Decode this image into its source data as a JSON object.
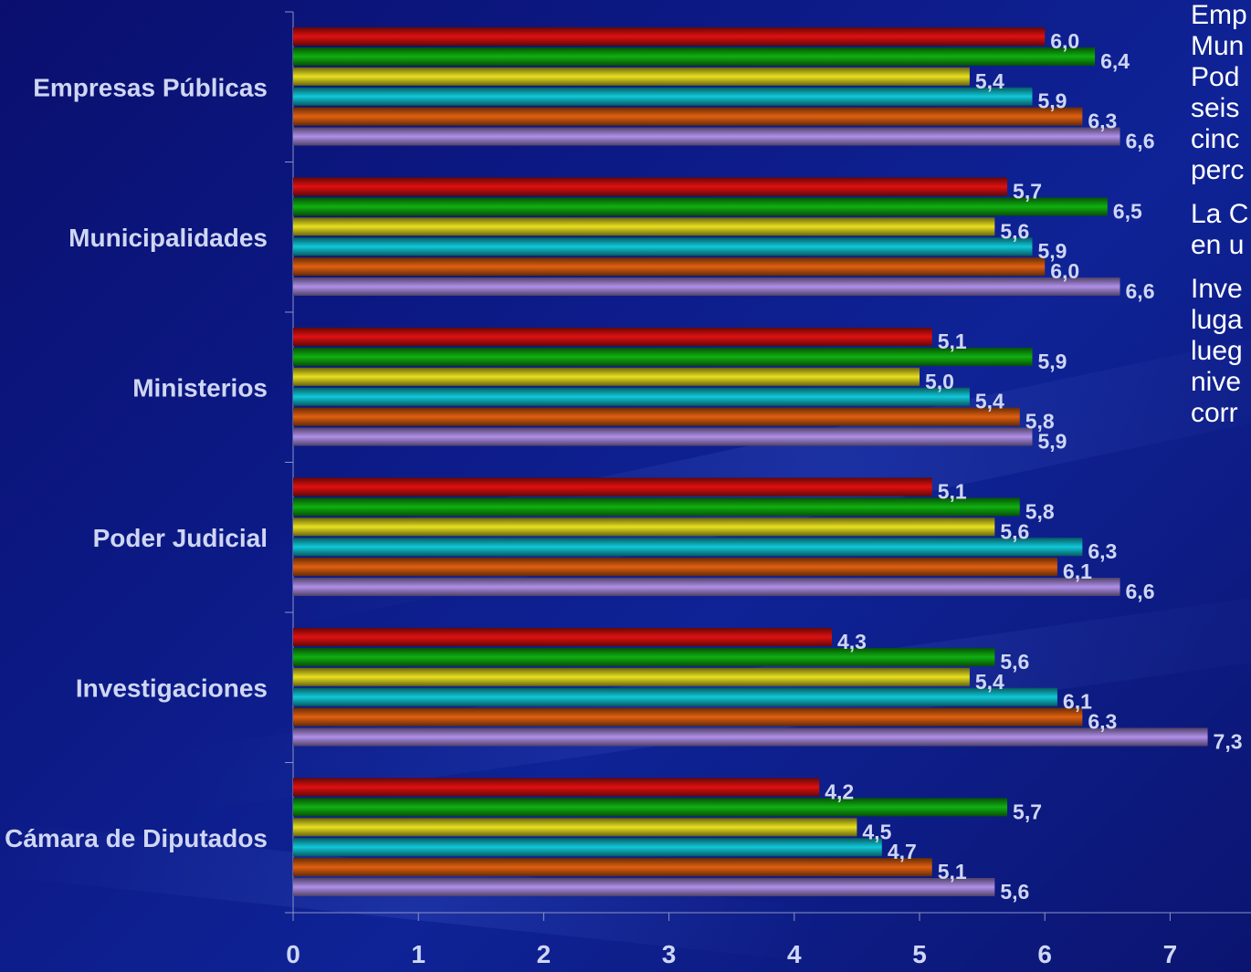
{
  "chart_data": {
    "type": "bar",
    "orientation": "horizontal",
    "categories": [
      "Empresas Públicas",
      "Municipalidades",
      "Ministerios",
      "Poder Judicial",
      "Investigaciones",
      "Cámara de Diputados"
    ],
    "series": [
      {
        "color": "#e01010",
        "values": [
          6.0,
          5.7,
          5.1,
          5.1,
          4.3,
          4.2
        ],
        "labels": [
          "6,0",
          "5,7",
          "5,1",
          "5,1",
          "4,3",
          "4,2"
        ]
      },
      {
        "color": "#10b010",
        "values": [
          6.4,
          6.5,
          5.9,
          5.8,
          5.6,
          5.7
        ],
        "labels": [
          "6,4",
          "6,5",
          "5,9",
          "5,8",
          "5,6",
          "5,7"
        ]
      },
      {
        "color": "#e8e020",
        "values": [
          5.4,
          5.6,
          5.0,
          5.6,
          5.4,
          4.5
        ],
        "labels": [
          "5,4",
          "5,6",
          "5,0",
          "5,6",
          "5,4",
          "4,5"
        ]
      },
      {
        "color": "#10c8d8",
        "values": [
          5.9,
          5.9,
          5.4,
          6.3,
          6.1,
          4.7
        ],
        "labels": [
          "5,9",
          "5,9",
          "5,4",
          "6,3",
          "6,1",
          "4,7"
        ]
      },
      {
        "color": "#e06010",
        "values": [
          6.3,
          6.0,
          5.8,
          6.1,
          6.3,
          5.1
        ],
        "labels": [
          "6,3",
          "6,0",
          "5,8",
          "6,1",
          "6,3",
          "5,1"
        ]
      },
      {
        "color": "#b090e8",
        "values": [
          6.6,
          6.6,
          5.9,
          6.6,
          7.3,
          5.6
        ],
        "labels": [
          "6,6",
          "6,6",
          "5,9",
          "6,6",
          "7,3",
          "5,6"
        ]
      }
    ],
    "xlim": [
      0,
      7.9
    ],
    "xticks": [
      0,
      1,
      2,
      3,
      4,
      5,
      6,
      7
    ],
    "grid": false,
    "legend": "none"
  },
  "side_text": [
    [
      "Emp",
      "Mun",
      "Pod",
      "seis",
      "cinc",
      "perc"
    ],
    [
      "La C",
      "en u"
    ],
    [
      "Inve",
      "luga",
      "lueg",
      "nive",
      "corr"
    ]
  ]
}
